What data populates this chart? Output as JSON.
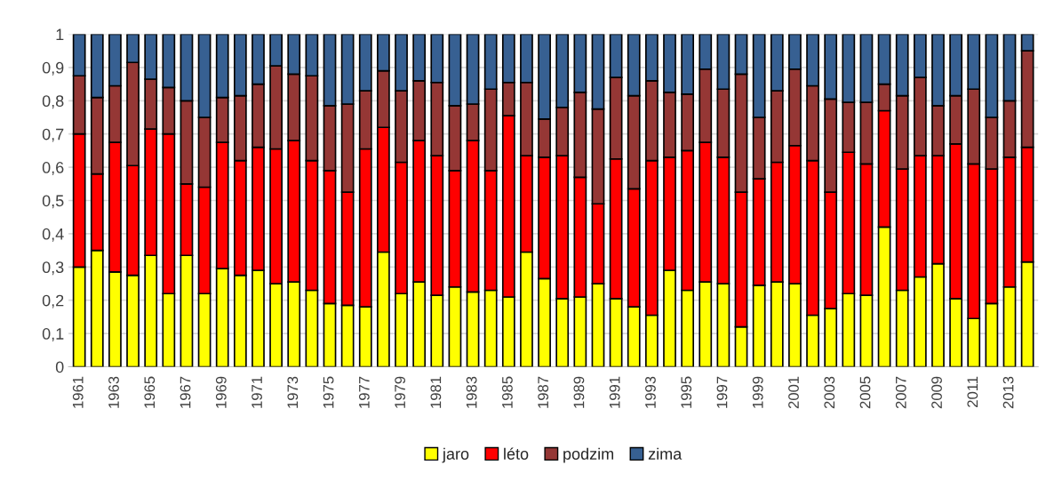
{
  "chart_data": {
    "type": "bar",
    "stacked": true,
    "categories": [
      "1961",
      null,
      "1963",
      null,
      "1965",
      null,
      "1967",
      null,
      "1969",
      null,
      "1971",
      null,
      "1973",
      null,
      "1975",
      null,
      "1977",
      null,
      "1979",
      null,
      "1981",
      null,
      "1983",
      null,
      "1985",
      null,
      "1987",
      null,
      "1989",
      null,
      "1991",
      null,
      "1993",
      null,
      "1995",
      null,
      "1997",
      null,
      "1999",
      null,
      "2001",
      null,
      "2003",
      null,
      "2005",
      null,
      "2007",
      null,
      "2009",
      null,
      "2011",
      null,
      "2013",
      null
    ],
    "series": [
      {
        "name": "jaro",
        "color": "#ffff00",
        "values": [
          0.3,
          0.35,
          0.285,
          0.275,
          0.335,
          0.22,
          0.335,
          0.22,
          0.295,
          0.275,
          0.29,
          0.25,
          0.255,
          0.23,
          0.19,
          0.185,
          0.18,
          0.345,
          0.22,
          0.255,
          0.215,
          0.24,
          0.225,
          0.23,
          0.21,
          0.345,
          0.265,
          0.205,
          0.21,
          0.25,
          0.205,
          0.18,
          0.155,
          0.29,
          0.23,
          0.255,
          0.25,
          0.12,
          0.245,
          0.255,
          0.25,
          0.155,
          0.175,
          0.22,
          0.215,
          0.42,
          0.23,
          0.27,
          0.31,
          0.205,
          0.145,
          0.19,
          0.24,
          0.315
        ]
      },
      {
        "name": "léto",
        "color": "#ff0000",
        "values": [
          0.4,
          0.23,
          0.39,
          0.33,
          0.38,
          0.48,
          0.215,
          0.32,
          0.38,
          0.345,
          0.37,
          0.405,
          0.425,
          0.39,
          0.4,
          0.34,
          0.475,
          0.375,
          0.395,
          0.425,
          0.42,
          0.35,
          0.455,
          0.36,
          0.545,
          0.29,
          0.365,
          0.43,
          0.36,
          0.24,
          0.42,
          0.355,
          0.465,
          0.34,
          0.42,
          0.42,
          0.38,
          0.405,
          0.32,
          0.36,
          0.415,
          0.465,
          0.35,
          0.425,
          0.395,
          0.35,
          0.365,
          0.365,
          0.325,
          0.465,
          0.465,
          0.405,
          0.39,
          0.345
        ]
      },
      {
        "name": "podzim",
        "color": "#953735",
        "values": [
          0.175,
          0.23,
          0.17,
          0.31,
          0.15,
          0.14,
          0.25,
          0.21,
          0.135,
          0.195,
          0.19,
          0.25,
          0.2,
          0.255,
          0.195,
          0.265,
          0.175,
          0.17,
          0.215,
          0.18,
          0.22,
          0.195,
          0.11,
          0.245,
          0.1,
          0.22,
          0.115,
          0.145,
          0.255,
          0.285,
          0.245,
          0.28,
          0.24,
          0.195,
          0.17,
          0.22,
          0.205,
          0.355,
          0.185,
          0.215,
          0.23,
          0.225,
          0.28,
          0.15,
          0.185,
          0.08,
          0.22,
          0.235,
          0.15,
          0.145,
          0.225,
          0.155,
          0.17,
          0.29
        ]
      },
      {
        "name": "zima",
        "color": "#376092",
        "values": [
          0.125,
          0.19,
          0.155,
          0.085,
          0.135,
          0.16,
          0.2,
          0.25,
          0.19,
          0.185,
          0.15,
          0.095,
          0.12,
          0.125,
          0.215,
          0.21,
          0.17,
          0.11,
          0.17,
          0.14,
          0.145,
          0.215,
          0.21,
          0.165,
          0.145,
          0.145,
          0.255,
          0.22,
          0.175,
          0.225,
          0.13,
          0.185,
          0.14,
          0.175,
          0.18,
          0.105,
          0.165,
          0.12,
          0.25,
          0.17,
          0.105,
          0.155,
          0.195,
          0.205,
          0.205,
          0.15,
          0.185,
          0.13,
          0.215,
          0.185,
          0.165,
          0.25,
          0.2,
          0.05
        ]
      }
    ],
    "ylim": [
      0,
      1
    ],
    "yticks": [
      0,
      {
        "value": 0.1,
        "label": "0,1"
      },
      {
        "value": 0.2,
        "label": "0,2"
      },
      {
        "value": 0.3,
        "label": "0,3"
      },
      {
        "value": 0.4,
        "label": "0,4"
      },
      {
        "value": 0.5,
        "label": "0,5"
      },
      {
        "value": 0.6,
        "label": "0,6"
      },
      {
        "value": 0.7,
        "label": "0,7"
      },
      {
        "value": 0.8,
        "label": "0,8"
      },
      {
        "value": 0.9,
        "label": "0,9"
      },
      1
    ],
    "grid": "y",
    "legend": "bottom"
  }
}
